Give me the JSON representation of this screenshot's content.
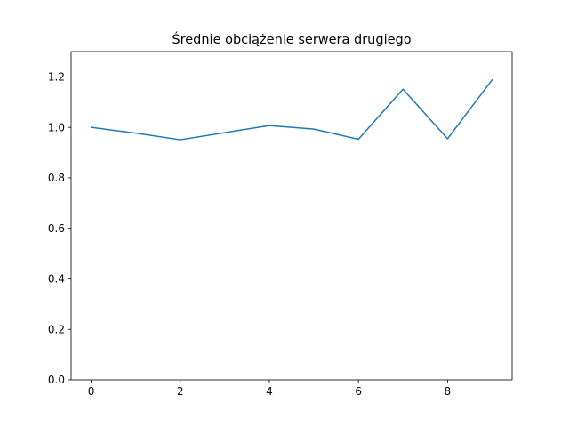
{
  "chart_data": {
    "type": "line",
    "title": "Średnie obciążenie serwera drugiego",
    "xlabel": "",
    "ylabel": "",
    "x": [
      0,
      1,
      2,
      3,
      4,
      5,
      6,
      7,
      8,
      9
    ],
    "series": [
      {
        "values": [
          1.0,
          0.977,
          0.951,
          0.979,
          1.007,
          0.993,
          0.953,
          1.151,
          0.955,
          1.188
        ],
        "color": "#1f77b4"
      }
    ],
    "xlim": [
      -0.45,
      9.45
    ],
    "ylim": [
      0,
      1.3
    ],
    "x_ticks": [
      0,
      2,
      4,
      6,
      8
    ],
    "y_ticks": [
      0.0,
      0.2,
      0.4,
      0.6,
      0.8,
      1.0,
      1.2
    ],
    "x_tick_labels": [
      "0",
      "2",
      "4",
      "6",
      "8"
    ],
    "y_tick_labels": [
      "0.0",
      "0.2",
      "0.4",
      "0.6",
      "0.8",
      "1.0",
      "1.2"
    ],
    "grid": false,
    "legend": false
  }
}
